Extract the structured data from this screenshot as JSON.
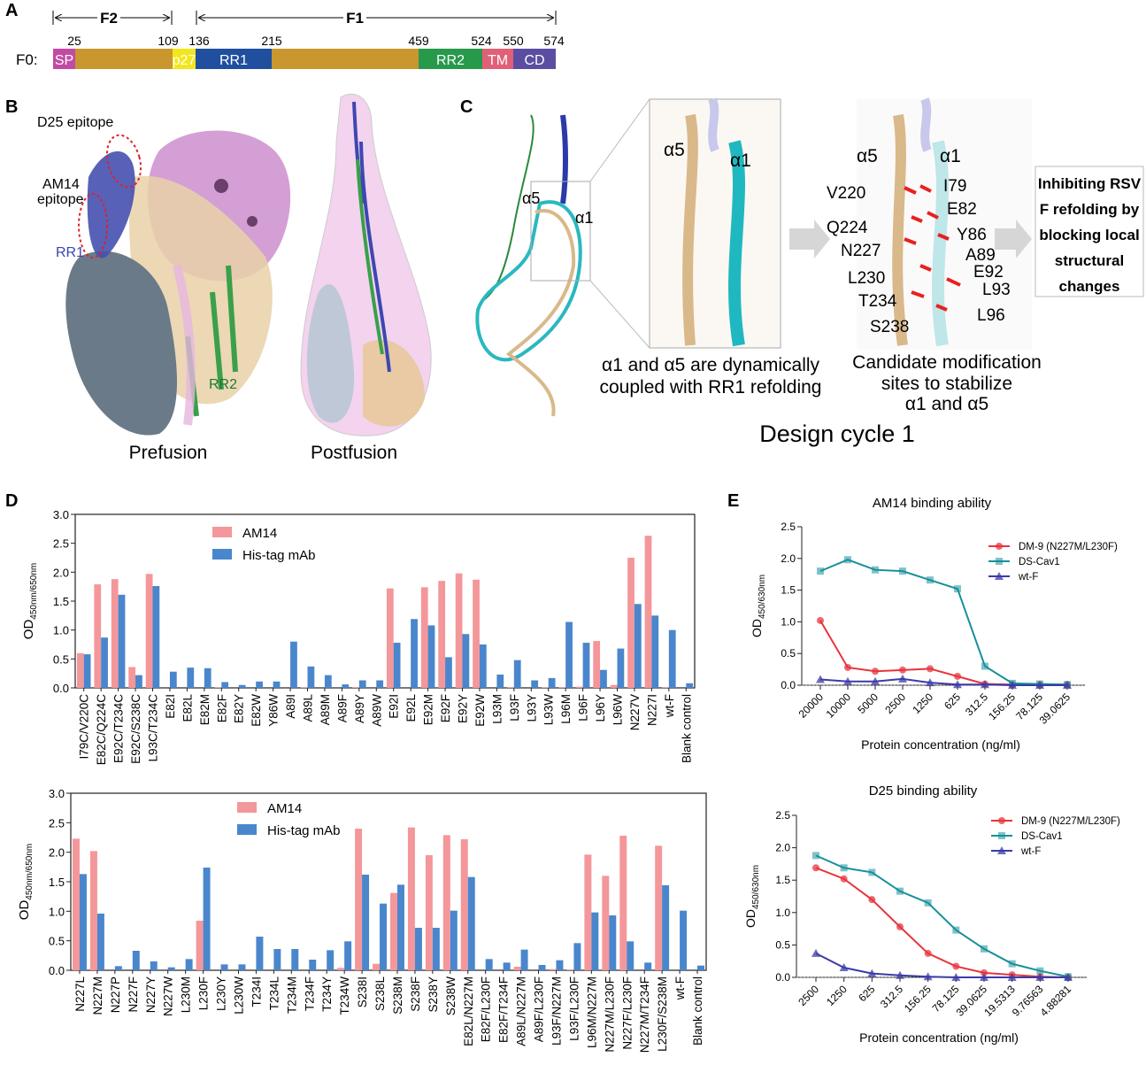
{
  "panel_a": {
    "label": "A",
    "f2": "F2",
    "f1": "F1",
    "f0": "F0:",
    "residues": [
      "25",
      "109",
      "136",
      "215",
      "459",
      "524",
      "550",
      "574"
    ],
    "segments": [
      {
        "label": "SP",
        "color": "#c24aa6"
      },
      {
        "label": "",
        "color": "#c9972e"
      },
      {
        "label": "p27",
        "color": "#f3e61c"
      },
      {
        "label": "RR1",
        "color": "#1f4f9e"
      },
      {
        "label": "",
        "color": "#c9972e"
      },
      {
        "label": "RR2",
        "color": "#27994b"
      },
      {
        "label": "TM",
        "color": "#e06078"
      },
      {
        "label": "CD",
        "color": "#5b4ea2"
      }
    ]
  },
  "panel_b": {
    "label": "B",
    "d25_epitope": "D25 epitope",
    "am14_epitope_1": "AM14",
    "am14_epitope_2": "epitope",
    "rr1": "RR1",
    "rr2": "RR2",
    "prefusion": "Prefusion",
    "postfusion": "Postfusion"
  },
  "panel_c": {
    "label": "C",
    "alpha5": "α5",
    "alpha1": "α1",
    "caption1_line1": "α1 and α5 are dynamically",
    "caption1_line2": "coupled with RR1 refolding",
    "caption2_line1": "Candidate modification",
    "caption2_line2": "sites to stabilize",
    "caption2_line3": "α1 and α5",
    "residues": [
      "V220",
      "I79",
      "E82",
      "Q224",
      "Y86",
      "N227",
      "A89",
      "E92",
      "L230",
      "L93",
      "T234",
      "L96",
      "S238"
    ],
    "box_lines": [
      "Inhibiting RSV",
      "F refolding by",
      "blocking local",
      "structural",
      "changes"
    ],
    "design_cycle": "Design cycle 1"
  },
  "panel_d": {
    "label": "D"
  },
  "panel_e": {
    "label": "E"
  },
  "chart_data": [
    {
      "type": "bar",
      "title": "",
      "ylabel_main": "OD",
      "ylabel_sub": "450nm/650nm",
      "ylim": [
        0,
        3.0
      ],
      "yticks": [
        "0.0",
        "0.5",
        "1.0",
        "1.5",
        "2.0",
        "2.5",
        "3.0"
      ],
      "legend_position": "top-left",
      "categories": [
        "I79C/V220C",
        "E82C/Q224C",
        "E92C/T234C",
        "E92C/S238C",
        "L93C/T234C",
        "E82I",
        "E82L",
        "E82M",
        "E82F",
        "E82Y",
        "E82W",
        "Y86W",
        "A89I",
        "A89L",
        "A89M",
        "A89F",
        "A89Y",
        "A89W",
        "E92I",
        "E92L",
        "E92M",
        "E92F",
        "E92Y",
        "E92W",
        "L93M",
        "L93F",
        "L93Y",
        "L93W",
        "L96M",
        "L96F",
        "L96Y",
        "L96W",
        "N227V",
        "N227I",
        "wt-F",
        "Blank control"
      ],
      "series": [
        {
          "name": "AM14",
          "color": "#f4979a",
          "values": [
            0.6,
            1.79,
            1.88,
            0.36,
            1.97,
            0,
            0,
            0,
            0.01,
            0,
            0,
            0,
            0,
            0.01,
            0,
            0,
            0.01,
            0,
            1.72,
            0,
            1.74,
            1.85,
            1.98,
            1.87,
            0,
            0.01,
            0,
            0.01,
            0.01,
            0.02,
            0.81,
            0.05,
            2.25,
            2.63,
            0.01,
            0
          ]
        },
        {
          "name": "His-tag mAb",
          "color": "#4a86cc",
          "values": [
            0.58,
            0.87,
            1.61,
            0.22,
            1.76,
            0.28,
            0.35,
            0.34,
            0.1,
            0.05,
            0.11,
            0.11,
            0.8,
            0.37,
            0.22,
            0.06,
            0.13,
            0.13,
            0.78,
            1.19,
            1.08,
            0.53,
            0.93,
            0.75,
            0.23,
            0.48,
            0.13,
            0.17,
            1.14,
            0.78,
            0.31,
            0.68,
            1.45,
            1.25,
            1.0,
            0.08
          ]
        }
      ]
    },
    {
      "type": "bar",
      "title": "",
      "ylabel_main": "OD",
      "ylabel_sub": "450nm/650nm",
      "ylim": [
        0,
        3.0
      ],
      "yticks": [
        "0.0",
        "0.5",
        "1.0",
        "1.5",
        "2.0",
        "2.5",
        "3.0"
      ],
      "legend_position": "top-left",
      "categories": [
        "N227L",
        "N227M",
        "N227P",
        "N227F",
        "N227Y",
        "N227W",
        "L230M",
        "L230F",
        "L230Y",
        "L230W",
        "T234I",
        "T234L",
        "T234M",
        "T234F",
        "T234Y",
        "T234W",
        "S238I",
        "S238L",
        "S238M",
        "S238F",
        "S238Y",
        "S238W",
        "E82L/N227M",
        "E82F/L230F",
        "E82F/T234F",
        "A89L/N227M",
        "A89F/L230F",
        "L93F/N227M",
        "L93F/L230F",
        "L96M/N227M",
        "N227M/L230F",
        "N227F/L230F",
        "N227M/T234F",
        "L230F/S238M",
        "wt-F",
        "Blank control"
      ],
      "series": [
        {
          "name": "AM14",
          "color": "#f4979a",
          "values": [
            2.23,
            2.02,
            0,
            0,
            0,
            0,
            0,
            0.84,
            0,
            0,
            0,
            0,
            0,
            0,
            0,
            0.04,
            2.4,
            0.11,
            1.31,
            2.42,
            1.95,
            2.29,
            2.22,
            0,
            0,
            0.06,
            0,
            0.02,
            0.01,
            1.96,
            1.6,
            2.28,
            0,
            2.11,
            0,
            0
          ]
        },
        {
          "name": "His-tag mAb",
          "color": "#4a86cc",
          "values": [
            1.63,
            0.96,
            0.07,
            0.33,
            0.15,
            0.05,
            0.19,
            1.74,
            0.1,
            0.1,
            0.57,
            0.36,
            0.36,
            0.18,
            0.34,
            0.49,
            1.62,
            1.13,
            1.45,
            0.72,
            0.72,
            1.01,
            1.58,
            0.19,
            0.13,
            0.35,
            0.09,
            0.17,
            0.46,
            0.98,
            0.93,
            0.49,
            0.13,
            1.44,
            1.01,
            0.08
          ]
        }
      ]
    },
    {
      "type": "line",
      "title": "AM14 binding ability",
      "xlabel": "Protein concentration (ng/ml)",
      "ylabel_main": "OD",
      "ylabel_sub": "450/630nm",
      "ylim": [
        0,
        2.5
      ],
      "yticks": [
        "0.0",
        "0.5",
        "1.0",
        "1.5",
        "2.0",
        "2.5"
      ],
      "legend_position": "top-right",
      "categories": [
        "20000",
        "10000",
        "5000",
        "2500",
        "1250",
        "625",
        "312.5",
        "156.25",
        "78.125",
        "39.0625"
      ],
      "series": [
        {
          "name": "DM-9 (N227M/L230F)",
          "color": "#e8343c",
          "marker": "circle",
          "values": [
            1.02,
            0.28,
            0.22,
            0.24,
            0.26,
            0.14,
            0.02,
            0.01,
            0.01,
            0.01
          ]
        },
        {
          "name": "DS-Cav1",
          "color": "#16909a",
          "marker": "square",
          "values": [
            1.8,
            1.98,
            1.82,
            1.8,
            1.66,
            1.52,
            0.3,
            0.03,
            0.02,
            0.01
          ]
        },
        {
          "name": "wt-F",
          "color": "#3b3ba8",
          "marker": "triangle",
          "values": [
            0.09,
            0.06,
            0.06,
            0.1,
            0.04,
            0.01,
            0.01,
            0.0,
            0.0,
            0.0
          ]
        }
      ]
    },
    {
      "type": "line",
      "title": "D25 binding ability",
      "xlabel": "Protein concentration (ng/ml)",
      "ylabel_main": "OD",
      "ylabel_sub": "450/630nm",
      "ylim": [
        0,
        2.5
      ],
      "yticks": [
        "0.0",
        "0.5",
        "1.0",
        "1.5",
        "2.0",
        "2.5"
      ],
      "legend_position": "top-right",
      "categories": [
        "2500",
        "1250",
        "625",
        "312.5",
        "156.25",
        "78.125",
        "39.0625",
        "19.5313",
        "9.76563",
        "4.88281"
      ],
      "series": [
        {
          "name": "DM-9 (N227M/L230F)",
          "color": "#e8343c",
          "marker": "circle",
          "values": [
            1.69,
            1.52,
            1.2,
            0.78,
            0.37,
            0.17,
            0.07,
            0.04,
            0.01,
            0.0
          ]
        },
        {
          "name": "DS-Cav1",
          "color": "#16909a",
          "marker": "square",
          "values": [
            1.88,
            1.69,
            1.62,
            1.33,
            1.15,
            0.73,
            0.44,
            0.21,
            0.1,
            0.01
          ]
        },
        {
          "name": "wt-F",
          "color": "#3b3ba8",
          "marker": "triangle",
          "values": [
            0.37,
            0.15,
            0.06,
            0.03,
            0.01,
            0.0,
            0.0,
            0.0,
            0.0,
            0.0
          ]
        }
      ]
    }
  ]
}
